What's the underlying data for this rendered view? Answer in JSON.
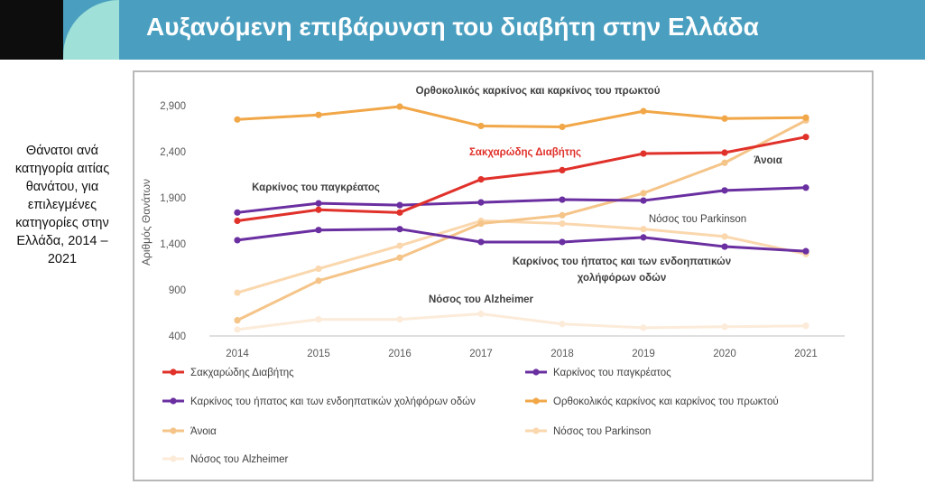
{
  "header": {
    "title": "Αυξανόμενη επιβάρυνση του διαβήτη στην Ελλάδα"
  },
  "side_text": "Θάνατοι ανά κατηγορία αιτίας θανάτου, για επιλεγμένες κατηγορίες στην Ελλάδα, 2014 – 2021",
  "chart_data": {
    "type": "line",
    "title": "",
    "xlabel": "",
    "ylabel": "Αριθμός Θανάτων",
    "ylim": [
      400,
      3000
    ],
    "yticks": [
      400,
      900,
      1400,
      1900,
      2400,
      2900
    ],
    "ytick_labels": [
      "400",
      "900",
      "1,400",
      "1,900",
      "2,400",
      "2,900"
    ],
    "x": [
      "2014",
      "2015",
      "2016",
      "2017",
      "2018",
      "2019",
      "2020",
      "2021"
    ],
    "series": [
      {
        "name": "Σακχαρώδης Διαβήτης",
        "color": "#e0312a",
        "width": 3,
        "values": [
          1650,
          1770,
          1740,
          2100,
          2200,
          2380,
          2390,
          2560
        ]
      },
      {
        "name": "Καρκίνος του παγκρέατος",
        "color": "#6a2fa0",
        "width": 3,
        "values": [
          1740,
          1840,
          1820,
          1850,
          1880,
          1870,
          1980,
          2010
        ]
      },
      {
        "name": "Καρκίνος του ήπατος και των ενδοηπατικών χολήφόρων οδών",
        "color": "#6a2fa0",
        "width": 3,
        "values": [
          1440,
          1550,
          1560,
          1420,
          1420,
          1470,
          1370,
          1320
        ]
      },
      {
        "name": "Ορθοκολικός καρκίνος και καρκίνος του πρωκτού",
        "color": "#f1a748",
        "width": 3,
        "values": [
          2750,
          2800,
          2890,
          2680,
          2670,
          2840,
          2760,
          2770
        ]
      },
      {
        "name": "Άνοια",
        "color": "#f5c488",
        "width": 3,
        "values": [
          570,
          1000,
          1250,
          1620,
          1710,
          1950,
          2280,
          2740
        ]
      },
      {
        "name": "Νόσος του Parkinson",
        "color": "#fad7ad",
        "width": 3,
        "values": [
          870,
          1130,
          1380,
          1650,
          1620,
          1560,
          1480,
          1290
        ]
      },
      {
        "name": "Νόσος του Alzheimer",
        "color": "#fcebd9",
        "width": 3,
        "values": [
          470,
          580,
          580,
          640,
          530,
          490,
          500,
          510
        ]
      }
    ],
    "annotations": [
      {
        "text": "Ορθοκολικός καρκίνος και καρκίνος του πρωκτού",
        "color": "#404040"
      },
      {
        "text": "Σακχαρώδης Διαβήτης",
        "color": "#e0312a"
      },
      {
        "text": "Άνοια",
        "color": "#404040"
      },
      {
        "text": "Καρκίνος του παγκρέατος",
        "color": "#404040"
      },
      {
        "text": "Νόσος του Parkinson",
        "color": "#404040"
      },
      {
        "text": "Καρκίνος του ήπατος και των ενδοηπατικών",
        "color": "#404040"
      },
      {
        "text": "χολήφόρων οδών",
        "color": "#404040"
      },
      {
        "text": "Νόσος του Alzheimer",
        "color": "#404040"
      }
    ],
    "legend": [
      "Σακχαρώδης Διαβήτης",
      "Καρκίνος του παγκρέατος",
      "Καρκίνος του ήπατος και των ενδοηπατικών χολήφόρων οδών",
      "Ορθοκολικός καρκίνος και καρκίνος του πρωκτού",
      "Άνοια",
      "Νόσος του Parkinson",
      "Νόσος του Alzheimer"
    ]
  }
}
